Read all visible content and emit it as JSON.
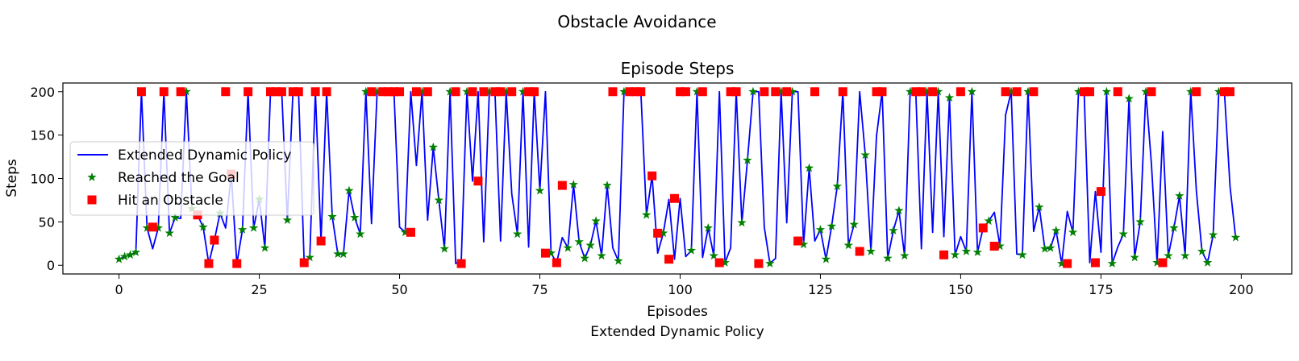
{
  "figure": {
    "suptitle": "Obstacle Avoidance",
    "caption": "Extended Dynamic Policy"
  },
  "chart_data": {
    "type": "line",
    "title": "Episode Steps",
    "xlabel": "Episodes",
    "ylabel": "Steps",
    "xlim": [
      -10,
      209
    ],
    "ylim": [
      -10,
      210
    ],
    "xticks": [
      0,
      25,
      50,
      75,
      100,
      125,
      150,
      175,
      200
    ],
    "yticks": [
      0,
      50,
      100,
      150,
      200
    ],
    "grid": false,
    "legend_position": "center-left",
    "colors": {
      "line": "#0000ff",
      "goal": "#008000",
      "obstacle": "#ff0000"
    },
    "series": [
      {
        "name": "Extended Dynamic Policy",
        "kind": "line"
      },
      {
        "name": "Reached the Goal",
        "kind": "scatter",
        "marker": "star"
      },
      {
        "name": "Hit an Obstacle",
        "kind": "scatter",
        "marker": "square"
      }
    ],
    "values": [
      7,
      10,
      12,
      15,
      200,
      43,
      19,
      43,
      200,
      37,
      55,
      54,
      200,
      65,
      58,
      44,
      2,
      29,
      60,
      43,
      105,
      2,
      41,
      200,
      43,
      76,
      20,
      200,
      200,
      200,
      52,
      200,
      200,
      3,
      9,
      200,
      28,
      200,
      56,
      13,
      13,
      86,
      55,
      36,
      200,
      48,
      200,
      200,
      200,
      200,
      44,
      38,
      200,
      115,
      200,
      52,
      136,
      75,
      19,
      200,
      2,
      6,
      200,
      97,
      200,
      27,
      200,
      200,
      28,
      200,
      82,
      36,
      200,
      21,
      200,
      86,
      200,
      14,
      3,
      32,
      20,
      93,
      27,
      8,
      23,
      51,
      11,
      92,
      20,
      5,
      200,
      200,
      200,
      200,
      58,
      103,
      14,
      37,
      76,
      7,
      77,
      10,
      17,
      200,
      9,
      43,
      11,
      200,
      3,
      20,
      200,
      49,
      121,
      200,
      200,
      44,
      2,
      8,
      200,
      49,
      200,
      200,
      24,
      112,
      28,
      41,
      7,
      45,
      91,
      200,
      23,
      47,
      200,
      127,
      16,
      149,
      200,
      8,
      40,
      63,
      11,
      200,
      200,
      19,
      200,
      38,
      200,
      33,
      193,
      12,
      33,
      16,
      200,
      15,
      43,
      51,
      61,
      22,
      173,
      200,
      13,
      12,
      200,
      39,
      67,
      19,
      20,
      40,
      2,
      62,
      38,
      200,
      200,
      3,
      85,
      15,
      200,
      2,
      21,
      36,
      192,
      9,
      50,
      200,
      116,
      3,
      154,
      11,
      43,
      80,
      11,
      200,
      86,
      16,
      3,
      35,
      200,
      200,
      91,
      32
    ],
    "obstacle_episodes": [
      4,
      6,
      8,
      11,
      14,
      16,
      17,
      19,
      20,
      21,
      23,
      27,
      28,
      29,
      31,
      32,
      33,
      35,
      36,
      37,
      45,
      47,
      48,
      49,
      50,
      52,
      53,
      55,
      60,
      61,
      63,
      64,
      65,
      67,
      68,
      70,
      73,
      74,
      76,
      78,
      79,
      88,
      91,
      92,
      93,
      95,
      96,
      98,
      99,
      100,
      101,
      104,
      107,
      109,
      110,
      114,
      115,
      117,
      119,
      121,
      124,
      129,
      132,
      135,
      136,
      142,
      143,
      145,
      147,
      150,
      154,
      156,
      158,
      160,
      163,
      169,
      172,
      173,
      174,
      175,
      178,
      184,
      186,
      192,
      197,
      198
    ],
    "obstacle_values": [
      200,
      44,
      200,
      200,
      58,
      2,
      29,
      200,
      105,
      2,
      200,
      200,
      200,
      200,
      200,
      200,
      3,
      200,
      28,
      200,
      200,
      200,
      200,
      200,
      200,
      38,
      200,
      200,
      200,
      2,
      200,
      97,
      200,
      200,
      200,
      200,
      200,
      200,
      14,
      3,
      92,
      200,
      200,
      200,
      200,
      103,
      37,
      7,
      77,
      200,
      200,
      200,
      3,
      200,
      200,
      2,
      200,
      200,
      200,
      28,
      200,
      200,
      16,
      200,
      200,
      200,
      200,
      200,
      12,
      200,
      43,
      22,
      200,
      200,
      200,
      2,
      200,
      200,
      3,
      85,
      200,
      200,
      3,
      200,
      200,
      200
    ]
  }
}
